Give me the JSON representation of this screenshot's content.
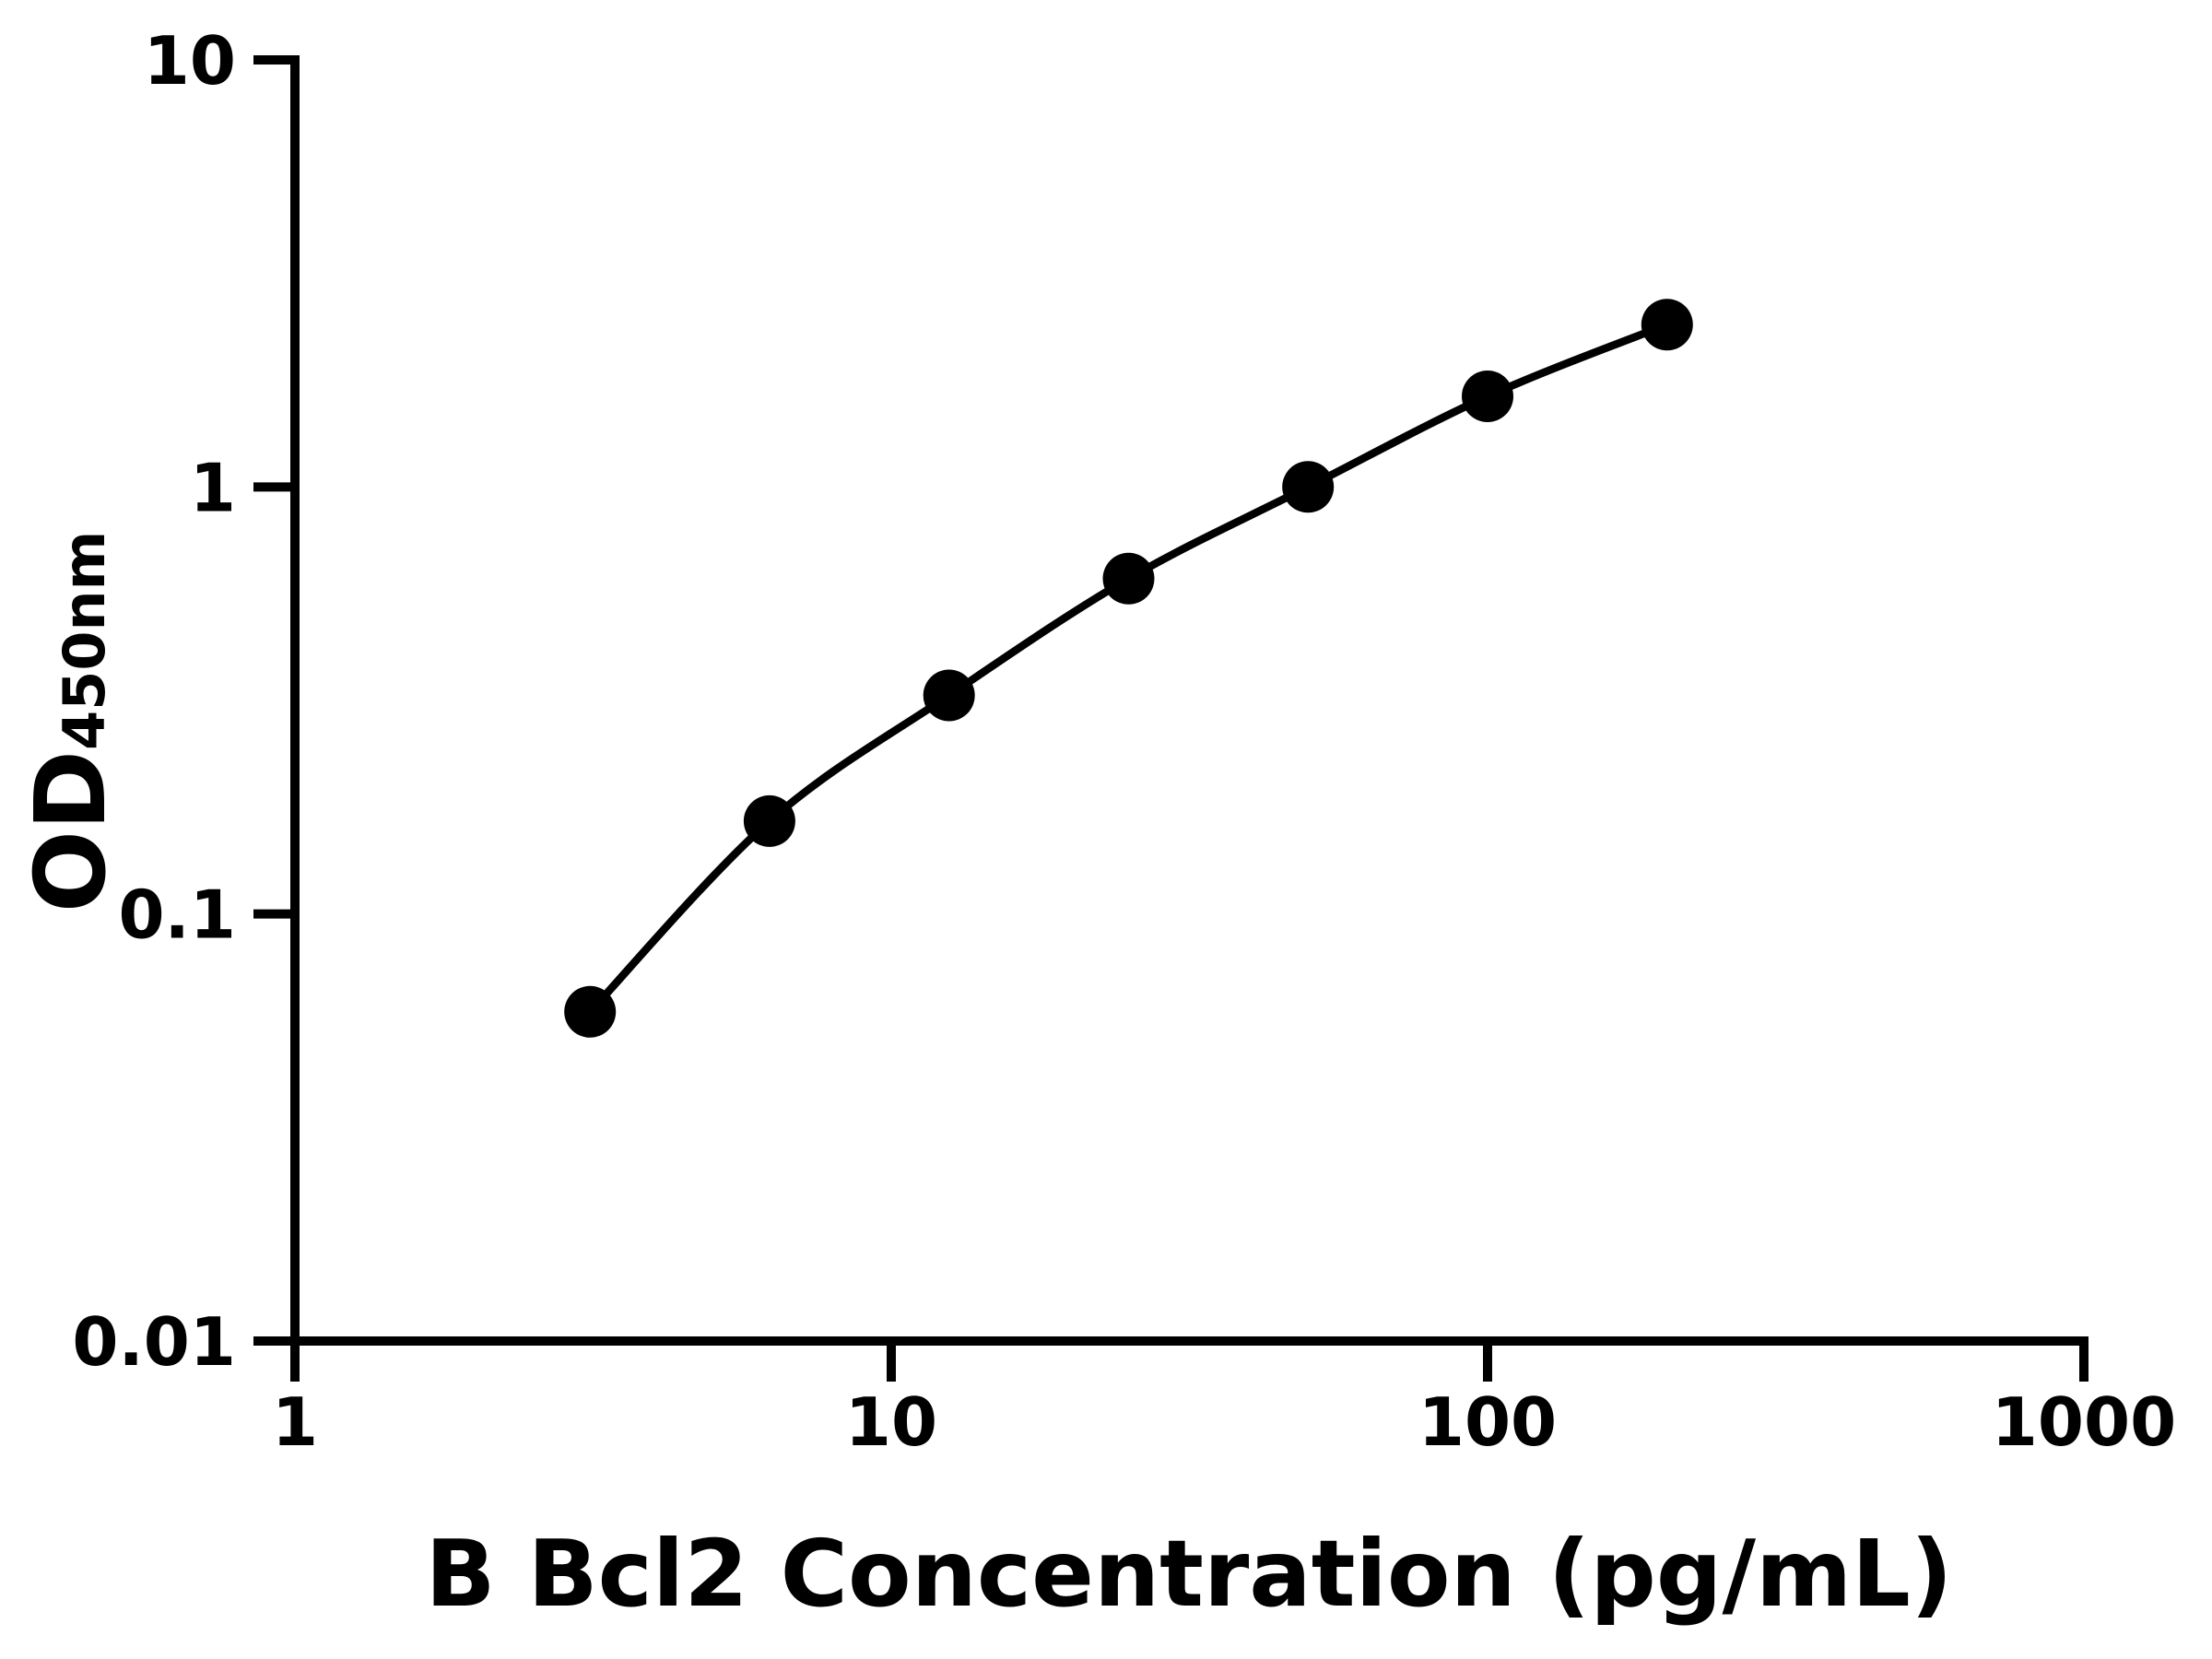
{
  "chart_data": {
    "type": "line",
    "title": "",
    "xlabel": "B Bcl2 Concentration (pg/mL)",
    "ylabel": "OD",
    "ylabel_subscript": "450nm",
    "x_scale": "log",
    "y_scale": "log",
    "xlim": [
      1,
      1000
    ],
    "ylim": [
      0.01,
      10
    ],
    "x": [
      3.125,
      6.25,
      12.5,
      25,
      50,
      100,
      200
    ],
    "y": [
      0.059,
      0.165,
      0.325,
      0.61,
      1.0,
      1.63,
      2.4
    ],
    "x_ticks": [
      {
        "value": 1,
        "label": "1"
      },
      {
        "value": 10,
        "label": "10"
      },
      {
        "value": 100,
        "label": "100"
      },
      {
        "value": 1000,
        "label": "1000"
      }
    ],
    "y_ticks": [
      {
        "value": 10,
        "label": "10"
      },
      {
        "value": 1,
        "label": "1"
      },
      {
        "value": 0.1,
        "label": "0.1"
      },
      {
        "value": 0.01,
        "label": "0.01"
      }
    ],
    "grid": false,
    "legend": null,
    "marker": "filled-circle",
    "colors": {
      "curve": "#000000",
      "marker": "#000000",
      "axis": "#000000",
      "text": "#000000",
      "background": "#ffffff"
    }
  }
}
